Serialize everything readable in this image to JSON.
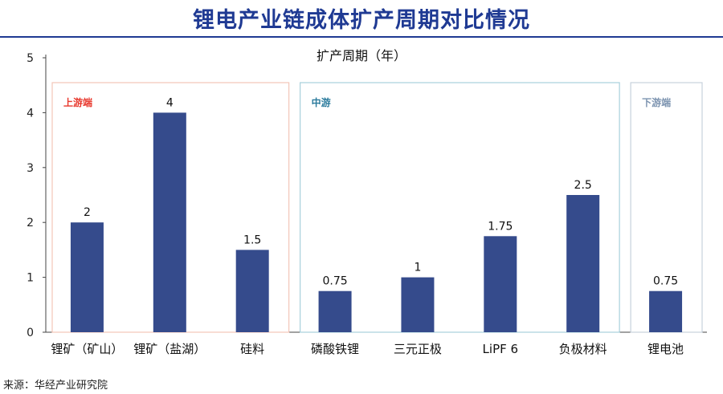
{
  "header": {
    "title": "锂电产业链成体扩产周期对比情况"
  },
  "chart_data": {
    "type": "bar",
    "title": "扩产周期（年）",
    "categories": [
      "锂矿（矿山）",
      "锂矿（盐湖）",
      "硅料",
      "磷酸铁锂",
      "三元正极",
      "LiPF 6",
      "负极材料",
      "锂电池"
    ],
    "values": [
      2,
      4,
      1.5,
      0.75,
      1,
      1.75,
      2.5,
      0.75
    ],
    "value_labels": [
      "2",
      "4",
      "1.5",
      "0.75",
      "1",
      "1.75",
      "2.5",
      "0.75"
    ],
    "ylim": [
      0,
      5
    ],
    "yticks": [
      "0",
      "1",
      "2",
      "3",
      "4",
      "5"
    ],
    "grid": false,
    "bar_color": "#354b8c",
    "groups": [
      {
        "label": "上游端",
        "color": "#e8392e",
        "border": "#f2c6b8",
        "first": 0,
        "last": 2
      },
      {
        "label": "中游",
        "color": "#2a7a9c",
        "border": "#a8d0dc",
        "first": 3,
        "last": 6
      },
      {
        "label": "下游端",
        "color": "#7d94b0",
        "border": "#c7d1dc",
        "first": 7,
        "last": 7
      }
    ]
  },
  "footer": {
    "source": "来源：华经产业研究院"
  }
}
